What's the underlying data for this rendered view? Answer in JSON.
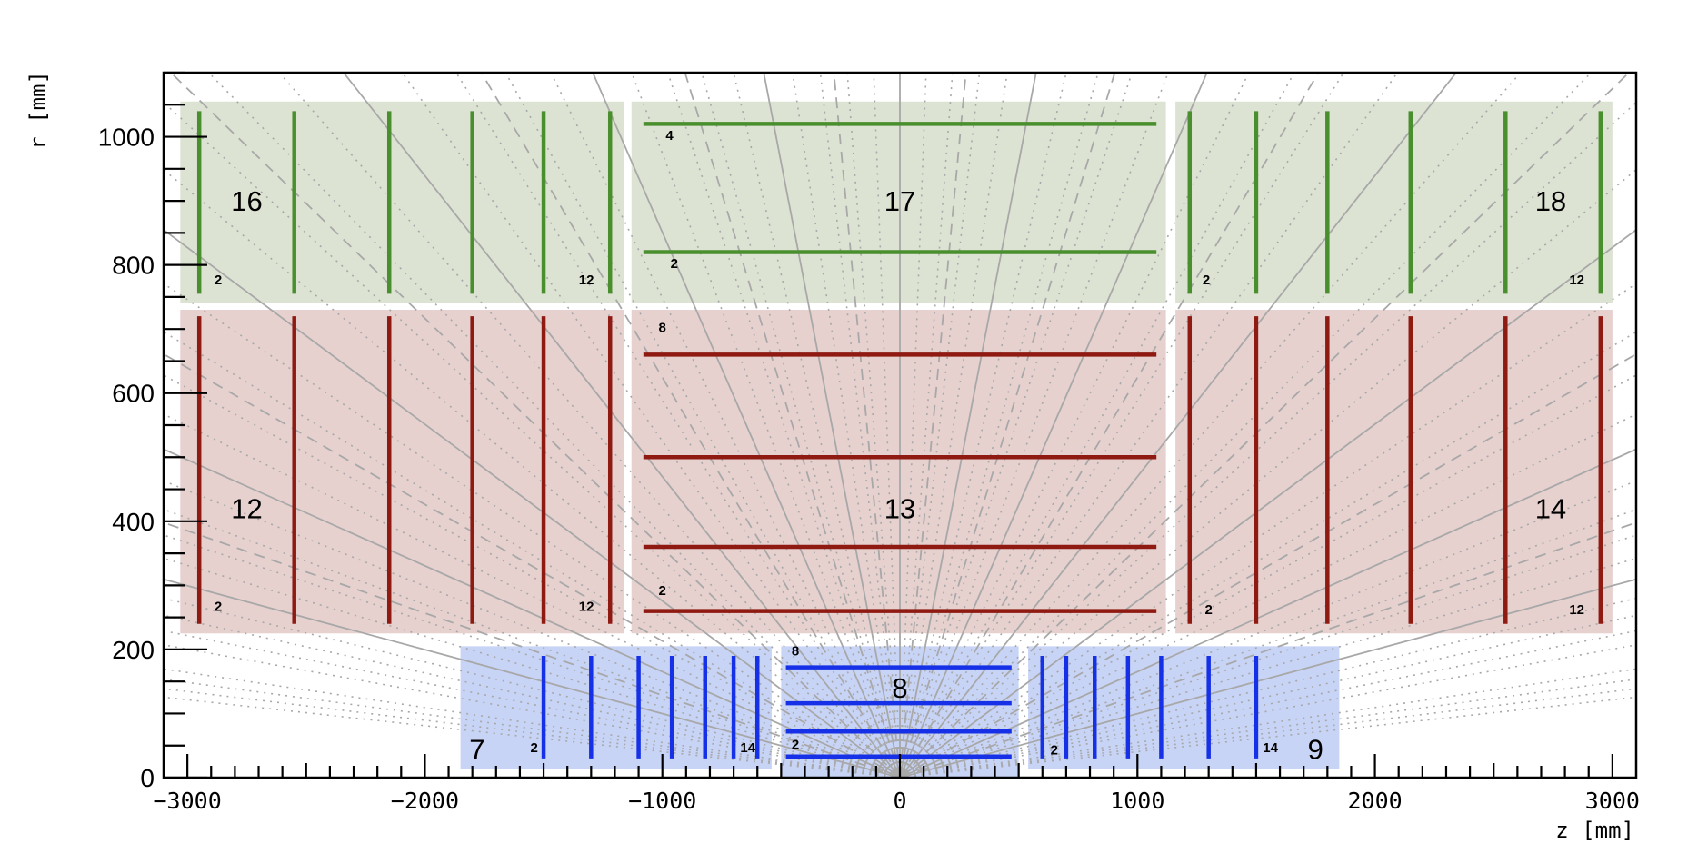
{
  "chart_data": {
    "type": "diagram",
    "x_axis": {
      "label": "z  [mm]",
      "range": [
        -3100,
        3100
      ],
      "ticks": [
        -3000,
        -2000,
        -1000,
        0,
        1000,
        2000,
        3000
      ],
      "tick_labels": [
        "−3000",
        "−2000",
        "−1000",
        "0",
        "1000",
        "2000",
        "3000"
      ]
    },
    "y_axis": {
      "label": "r  [mm]",
      "range": [
        0,
        1100
      ],
      "ticks": [
        0,
        200,
        400,
        600,
        800,
        1000
      ],
      "tick_labels": [
        "0",
        "200",
        "400",
        "600",
        "800",
        "1000"
      ]
    },
    "colors": {
      "pixel_fill": "#c8d4f6",
      "pixel_line": "#1530e6",
      "short_strip_fill": "#e6d1cf",
      "short_strip_line": "#8e1a12",
      "long_strip_fill": "#dde3d3",
      "long_strip_line": "#4a8f2e",
      "eta_line": "#a8a8a8"
    },
    "volumes": [
      {
        "id": "7",
        "z": [
          -1850,
          -540
        ],
        "r": [
          14,
          205
        ],
        "color": "pixel"
      },
      {
        "id": "8",
        "z": [
          -500,
          500
        ],
        "r": [
          0,
          205
        ],
        "color": "pixel"
      },
      {
        "id": "9",
        "z": [
          540,
          1850
        ],
        "r": [
          14,
          205
        ],
        "color": "pixel"
      },
      {
        "id": "12",
        "z": [
          -3030,
          -1160
        ],
        "r": [
          225,
          730
        ],
        "color": "short_strip"
      },
      {
        "id": "13",
        "z": [
          -1130,
          1120
        ],
        "r": [
          225,
          730
        ],
        "color": "short_strip"
      },
      {
        "id": "14",
        "z": [
          1160,
          3000
        ],
        "r": [
          225,
          730
        ],
        "color": "short_strip"
      },
      {
        "id": "16",
        "z": [
          -3030,
          -1160
        ],
        "r": [
          740,
          1055
        ],
        "color": "long_strip"
      },
      {
        "id": "17",
        "z": [
          -1130,
          1120
        ],
        "r": [
          740,
          1055
        ],
        "color": "long_strip"
      },
      {
        "id": "18",
        "z": [
          1160,
          3000
        ],
        "r": [
          740,
          1055
        ],
        "color": "long_strip"
      }
    ],
    "volume_label_positions": [
      {
        "id": "7",
        "z": -1780,
        "r": 45
      },
      {
        "id": "8",
        "z": 0,
        "r": 140
      },
      {
        "id": "9",
        "z": 1750,
        "r": 45
      },
      {
        "id": "12",
        "z": -2750,
        "r": 420
      },
      {
        "id": "13",
        "z": 0,
        "r": 420
      },
      {
        "id": "14",
        "z": 2740,
        "r": 420
      },
      {
        "id": "16",
        "z": -2750,
        "r": 900
      },
      {
        "id": "17",
        "z": 0,
        "r": 900
      },
      {
        "id": "18",
        "z": 2740,
        "r": 900
      }
    ],
    "layers": [
      {
        "volume": "8",
        "orientation": "barrel",
        "color": "pixel",
        "span": [
          -480,
          470
        ],
        "values": [
          33,
          72,
          116,
          172
        ],
        "labels": [
          {
            "text": "2",
            "z": -440,
            "r": 45
          },
          {
            "text": "8",
            "z": -440,
            "r": 191
          }
        ]
      },
      {
        "volume": "7",
        "orientation": "endcap",
        "color": "pixel",
        "span": [
          30,
          190
        ],
        "values": [
          -1500,
          -1300,
          -1100,
          -960,
          -820,
          -700,
          -600
        ],
        "labels": [
          {
            "text": "2",
            "z": -1540,
            "r": 40
          },
          {
            "text": "14",
            "z": -640,
            "r": 40
          }
        ]
      },
      {
        "volume": "9",
        "orientation": "endcap",
        "color": "pixel",
        "span": [
          30,
          190
        ],
        "values": [
          600,
          700,
          820,
          960,
          1100,
          1300,
          1500
        ],
        "labels": [
          {
            "text": "2",
            "z": 650,
            "r": 36
          },
          {
            "text": "14",
            "z": 1560,
            "r": 40
          }
        ]
      },
      {
        "volume": "13",
        "orientation": "barrel",
        "color": "short_strip",
        "span": [
          -1080,
          1080
        ],
        "values": [
          260,
          360,
          500,
          660
        ],
        "labels": [
          {
            "text": "2",
            "z": -1000,
            "r": 285
          },
          {
            "text": "8",
            "z": -1000,
            "r": 695
          }
        ]
      },
      {
        "volume": "12",
        "orientation": "endcap",
        "color": "short_strip",
        "span": [
          240,
          720
        ],
        "values": [
          -2950,
          -2550,
          -2150,
          -1800,
          -1500,
          -1220
        ],
        "labels": [
          {
            "text": "2",
            "z": -2870,
            "r": 260
          },
          {
            "text": "12",
            "z": -1320,
            "r": 260
          }
        ]
      },
      {
        "volume": "14",
        "orientation": "endcap",
        "color": "short_strip",
        "span": [
          240,
          720
        ],
        "values": [
          1220,
          1500,
          1800,
          2150,
          2550,
          2950
        ],
        "labels": [
          {
            "text": "2",
            "z": 1300,
            "r": 255
          },
          {
            "text": "12",
            "z": 2850,
            "r": 255
          }
        ]
      },
      {
        "volume": "17",
        "orientation": "barrel",
        "color": "long_strip",
        "span": [
          -1080,
          1080
        ],
        "values": [
          820,
          1020
        ],
        "labels": [
          {
            "text": "2",
            "z": -950,
            "r": 795
          },
          {
            "text": "4",
            "z": -970,
            "r": 995
          }
        ]
      },
      {
        "volume": "16",
        "orientation": "endcap",
        "color": "long_strip",
        "span": [
          755,
          1040
        ],
        "values": [
          -2950,
          -2550,
          -2150,
          -1800,
          -1500,
          -1220
        ],
        "labels": [
          {
            "text": "2",
            "z": -2870,
            "r": 770
          },
          {
            "text": "12",
            "z": -1320,
            "r": 770
          }
        ]
      },
      {
        "volume": "18",
        "orientation": "endcap",
        "color": "long_strip",
        "span": [
          755,
          1040
        ],
        "values": [
          1220,
          1500,
          1800,
          2150,
          2550,
          2950
        ],
        "labels": [
          {
            "text": "2",
            "z": 1290,
            "r": 770
          },
          {
            "text": "12",
            "z": 2850,
            "r": 770
          }
        ]
      }
    ],
    "eta_lines": {
      "origin": [
        0,
        0
      ],
      "solid_eta": [
        0,
        0.5,
        1,
        1.5,
        2,
        2.5,
        3
      ],
      "dashed_eta": [
        0.25,
        0.75,
        1.25,
        1.75,
        2.25,
        2.75
      ],
      "dotted_step": 0.1,
      "dotted_max": 4.0
    },
    "grid": false
  }
}
